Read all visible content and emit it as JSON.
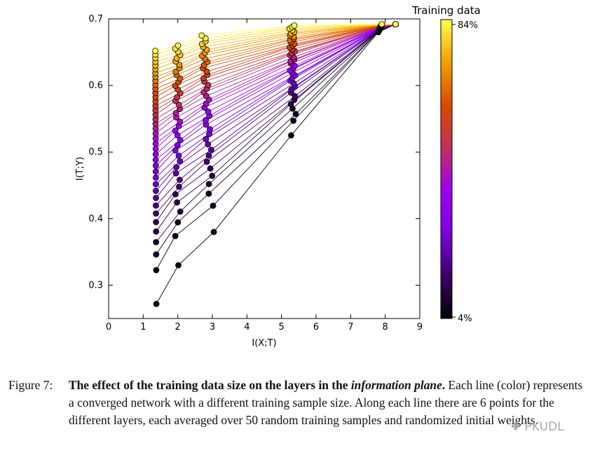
{
  "chart_data": {
    "type": "scatter",
    "title": "",
    "xlabel": "I(X;T)",
    "ylabel": "I(T;Y)",
    "xlim": [
      0,
      9
    ],
    "ylim": [
      0.25,
      0.7
    ],
    "x_ticks": [
      "0",
      "1",
      "2",
      "3",
      "4",
      "5",
      "6",
      "7",
      "8",
      "9"
    ],
    "y_ticks": [
      "0.3",
      "0.4",
      "0.5",
      "0.6",
      "0.7"
    ],
    "grid": false,
    "colorbar": {
      "title": "Training data",
      "top_label": "84%",
      "bottom_label": "4%",
      "colormap": [
        "#000000",
        "#3b0068",
        "#7a00e0",
        "#a000f0",
        "#c0305a",
        "#d84a00",
        "#f0a000",
        "#ffff50"
      ]
    },
    "series_count": 40,
    "points_per_line": 6,
    "layer_endpoints_smallest": [
      {
        "x": 8.3,
        "y": 0.692
      },
      {
        "x": 7.8,
        "y": 0.68
      },
      {
        "x": 5.35,
        "y": 0.525
      },
      {
        "x": 3.0,
        "y": 0.38
      },
      {
        "x": 2.0,
        "y": 0.33
      },
      {
        "x": 1.38,
        "y": 0.272
      }
    ],
    "layer_endpoints_largest": [
      {
        "x": 8.3,
        "y": 0.692
      },
      {
        "x": 7.9,
        "y": 0.692
      },
      {
        "x": 5.3,
        "y": 0.69
      },
      {
        "x": 2.75,
        "y": 0.675
      },
      {
        "x": 2.0,
        "y": 0.66
      },
      {
        "x": 1.35,
        "y": 0.652
      }
    ]
  },
  "caption": {
    "label": "Figure 7:",
    "bold": "The effect of the training data size on the layers in the ",
    "bold_italic": "information plane",
    "bold_end": ".",
    "text": " Each line (color) represents a converged network with a different training sample size. Along each line there are 6 points for the different layers, each averaged over 50 random training samples and randomized initial weights."
  },
  "watermark": "PKUDL"
}
